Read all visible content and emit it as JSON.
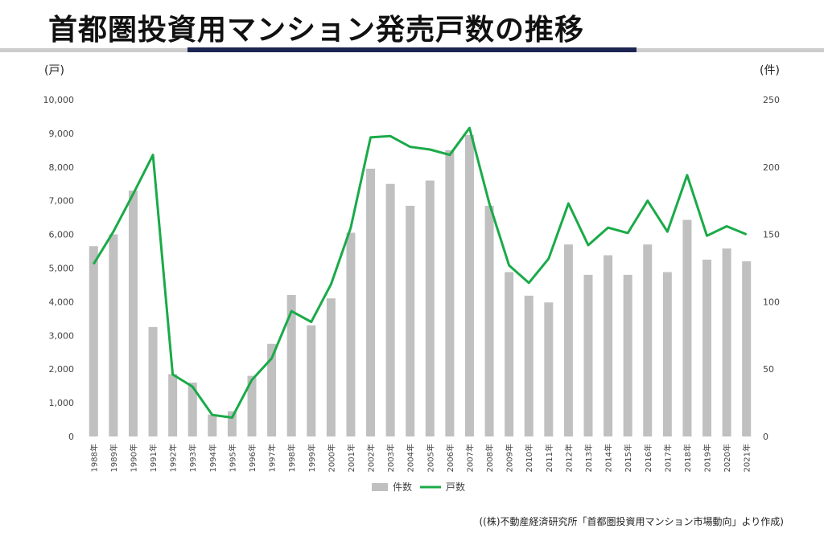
{
  "title": "首都圏投資用マンション発売戸数の推移",
  "units": {
    "left": "(戸)",
    "right": "(件)"
  },
  "source": "((株)不動産経済研究所「首都圏投資用マンション市場動向」より作成)",
  "colors": {
    "bars": "#c0c0c0",
    "line": "#1aaa48",
    "rule_navy": "#1c2452",
    "rule_gray": "#cccccc"
  },
  "chart_data": {
    "type": "bar",
    "categories": [
      "1988年",
      "1989年",
      "1990年",
      "1991年",
      "1992年",
      "1993年",
      "1994年",
      "1995年",
      "1996年",
      "1997年",
      "1998年",
      "1999年",
      "2000年",
      "2001年",
      "2002年",
      "2003年",
      "2004年",
      "2005年",
      "2006年",
      "2007年",
      "2008年",
      "2009年",
      "2010年",
      "2011年",
      "2012年",
      "2013年",
      "2014年",
      "2015年",
      "2016年",
      "2017年",
      "2018年",
      "2019年",
      "2020年",
      "2021年"
    ],
    "y_left": {
      "ylim": [
        0,
        10000
      ],
      "ticks": [
        "0",
        "1,000",
        "2,000",
        "3,000",
        "4,000",
        "5,000",
        "6,000",
        "7,000",
        "8,000",
        "9,000",
        "10,000"
      ]
    },
    "y_right": {
      "ylim": [
        0,
        250
      ],
      "ticks": [
        "0",
        "50",
        "100",
        "150",
        "200",
        "250"
      ]
    },
    "series": [
      {
        "name": "件数",
        "type": "bar",
        "axis": "left",
        "values": [
          5650,
          6000,
          7300,
          3250,
          1850,
          1600,
          650,
          750,
          1800,
          2750,
          4200,
          3300,
          4100,
          6050,
          7950,
          7500,
          6850,
          7600,
          8500,
          8950,
          6850,
          4880,
          4180,
          3980,
          5700,
          4800,
          5380,
          4800,
          5700,
          4880,
          6430,
          5250,
          5580,
          5200
        ]
      },
      {
        "name": "戸数",
        "type": "line",
        "axis": "right",
        "values": [
          128,
          152,
          180,
          209,
          46,
          37,
          16,
          14,
          42,
          58,
          93,
          85,
          113,
          155,
          222,
          223,
          215,
          213,
          209,
          229,
          173,
          127,
          114,
          132,
          173,
          142,
          155,
          151,
          175,
          152,
          194,
          149,
          156,
          150
        ]
      }
    ],
    "legend_position": "bottom"
  }
}
